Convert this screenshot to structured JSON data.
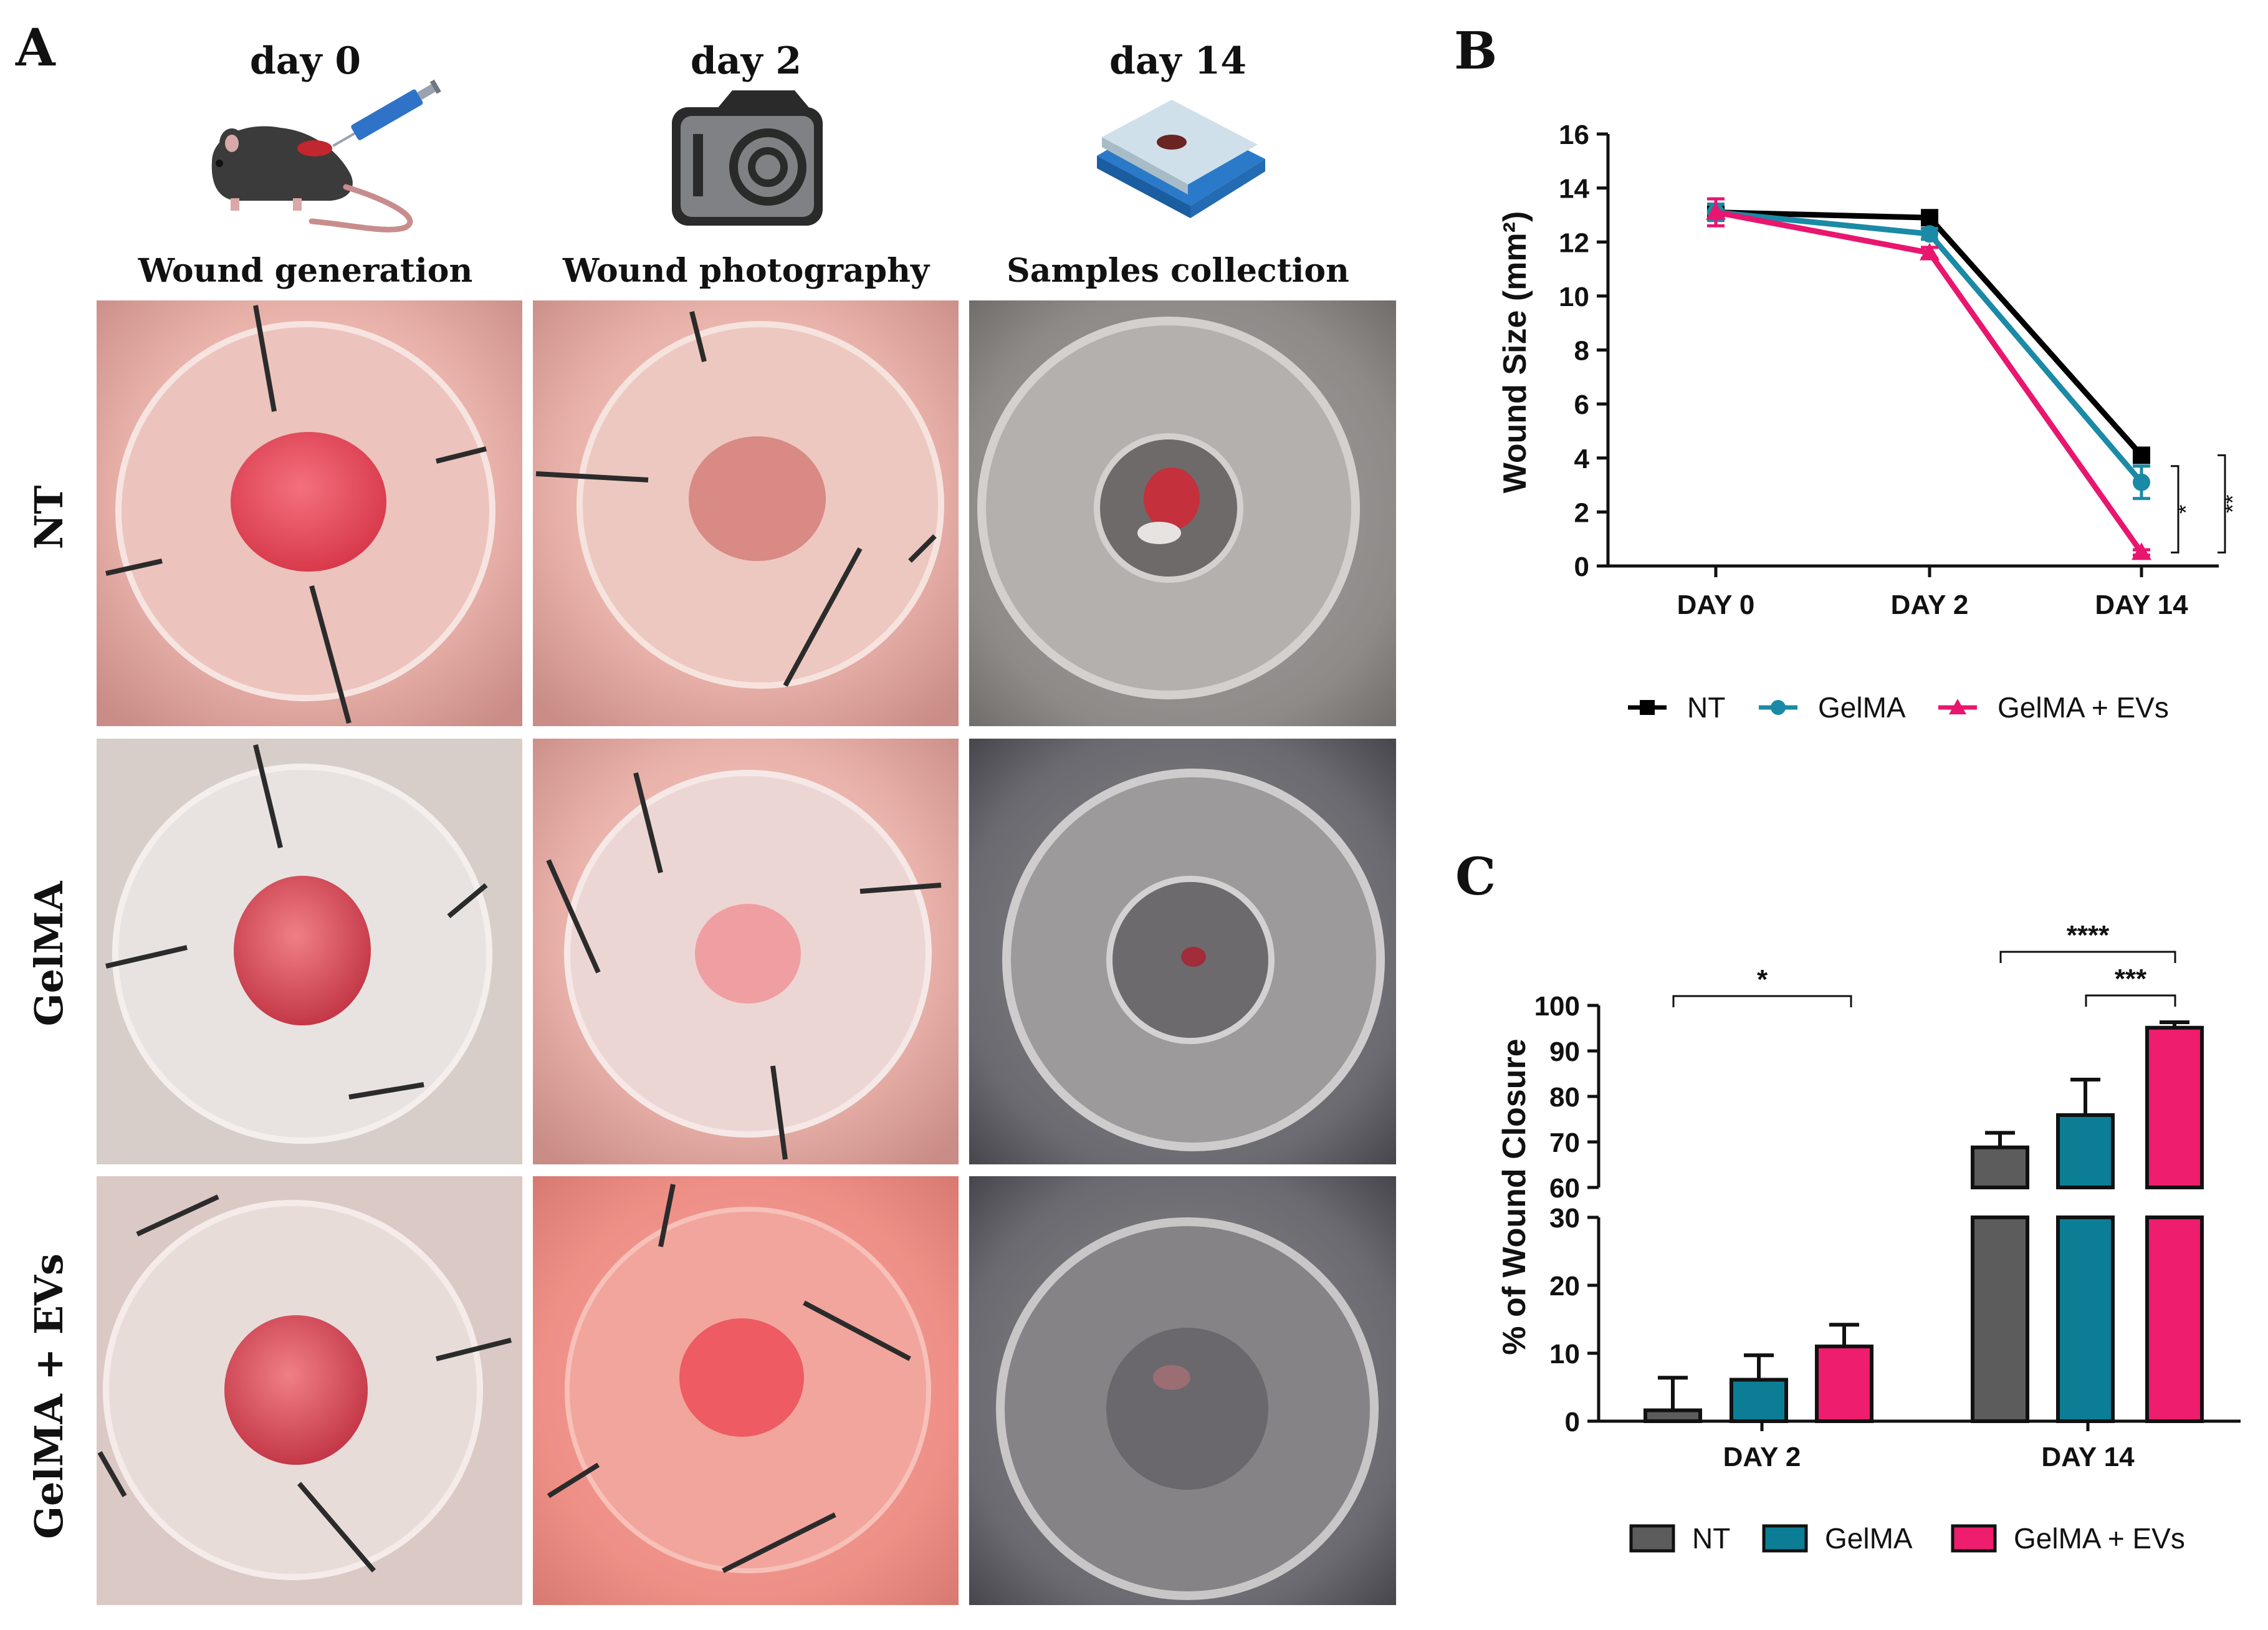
{
  "panel_a": {
    "label": "A",
    "columns": [
      {
        "day": "day 0",
        "caption": "Wound generation",
        "icon": "mouse-syringe-icon"
      },
      {
        "day": "day 2",
        "caption": "Wound photography",
        "icon": "camera-icon"
      },
      {
        "day": "day 14",
        "caption": "Samples collection",
        "icon": "microscope-slide-icon"
      }
    ],
    "rows": [
      "NT",
      "GelMA",
      "GelMA + EVs"
    ]
  },
  "colors": {
    "nt_line": "#000000",
    "gelma_line": "#1a8aa6",
    "evs_line": "#e8166f",
    "nt_bar": "#5c5c5c",
    "gelma_bar": "#0b7e96",
    "evs_bar": "#ee1d6d"
  },
  "chart_data": [
    {
      "panel": "B",
      "type": "line",
      "ylabel": "Wound Size (mm²)",
      "categories": [
        "DAY 0",
        "DAY 2",
        "DAY 14"
      ],
      "ylim": [
        0,
        16
      ],
      "yticks": [
        "0",
        "2",
        "4",
        "6",
        "8",
        "10",
        "12",
        "14",
        "16"
      ],
      "series": [
        {
          "name": "NT",
          "marker": "square",
          "values": [
            13.1,
            12.9,
            4.1
          ],
          "err": [
            0.3,
            0.2,
            0.2
          ]
        },
        {
          "name": "GelMA",
          "marker": "circle",
          "values": [
            13.1,
            12.3,
            3.1
          ],
          "err": [
            0.3,
            0.2,
            0.6
          ]
        },
        {
          "name": "GelMA + EVs",
          "marker": "triangle",
          "values": [
            13.1,
            11.6,
            0.5
          ],
          "err": [
            0.5,
            0.2,
            0.1
          ]
        }
      ],
      "significance": [
        {
          "between": [
            "GelMA",
            "GelMA + EVs"
          ],
          "at": "DAY 14",
          "label": "*"
        },
        {
          "between": [
            "NT",
            "GelMA + EVs"
          ],
          "at": "DAY 14",
          "label": "**"
        }
      ]
    },
    {
      "panel": "C",
      "type": "bar",
      "ylabel": "% of Wound Closure",
      "categories": [
        "DAY 2",
        "DAY 14"
      ],
      "axis_break": {
        "lower": [
          0,
          30
        ],
        "upper": [
          60,
          100
        ]
      },
      "yticks_lower": [
        "0",
        "10",
        "20",
        "30"
      ],
      "yticks_upper": [
        "60",
        "70",
        "80",
        "90",
        "100"
      ],
      "series": [
        {
          "name": "NT",
          "values": [
            1.6,
            68.8
          ],
          "err": [
            4.8,
            3.2
          ]
        },
        {
          "name": "GelMA",
          "values": [
            6.1,
            75.9
          ],
          "err": [
            3.6,
            7.8
          ]
        },
        {
          "name": "GelMA + EVs",
          "values": [
            11.0,
            95.1
          ],
          "err": [
            3.2,
            1.2
          ]
        }
      ],
      "significance": [
        {
          "between": [
            "NT DAY 2",
            "GelMA + EVs DAY 2"
          ],
          "label": "*"
        },
        {
          "between": [
            "NT DAY 14",
            "GelMA + EVs DAY 14"
          ],
          "label": "****"
        },
        {
          "between": [
            "GelMA DAY 14",
            "GelMA + EVs DAY 14"
          ],
          "label": "***"
        }
      ]
    }
  ]
}
